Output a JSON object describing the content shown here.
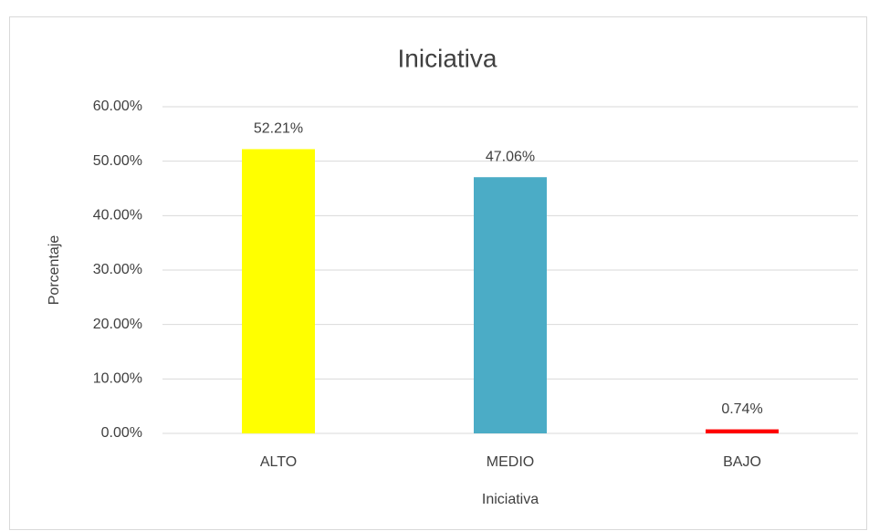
{
  "chart_data": {
    "type": "bar",
    "title": "Iniciativa",
    "x_label": "Iniciativa",
    "y_label": "Porcentaje",
    "categories": [
      "ALTO",
      "MEDIO",
      "BAJO"
    ],
    "values": [
      52.21,
      47.06,
      0.74
    ],
    "value_labels": [
      "52.21%",
      "47.06%",
      "0.74%"
    ],
    "colors": [
      "#ffff00",
      "#4bacc6",
      "#ff0000"
    ],
    "ylim": [
      0,
      60
    ],
    "yticks": [
      {
        "value": 0,
        "label": "0.00%"
      },
      {
        "value": 10,
        "label": "10.00%"
      },
      {
        "value": 20,
        "label": "20.00%"
      },
      {
        "value": 30,
        "label": "30.00%"
      },
      {
        "value": 40,
        "label": "40.00%"
      },
      {
        "value": 50,
        "label": "50.00%"
      },
      {
        "value": 60,
        "label": "60.00%"
      }
    ],
    "grid": true
  }
}
